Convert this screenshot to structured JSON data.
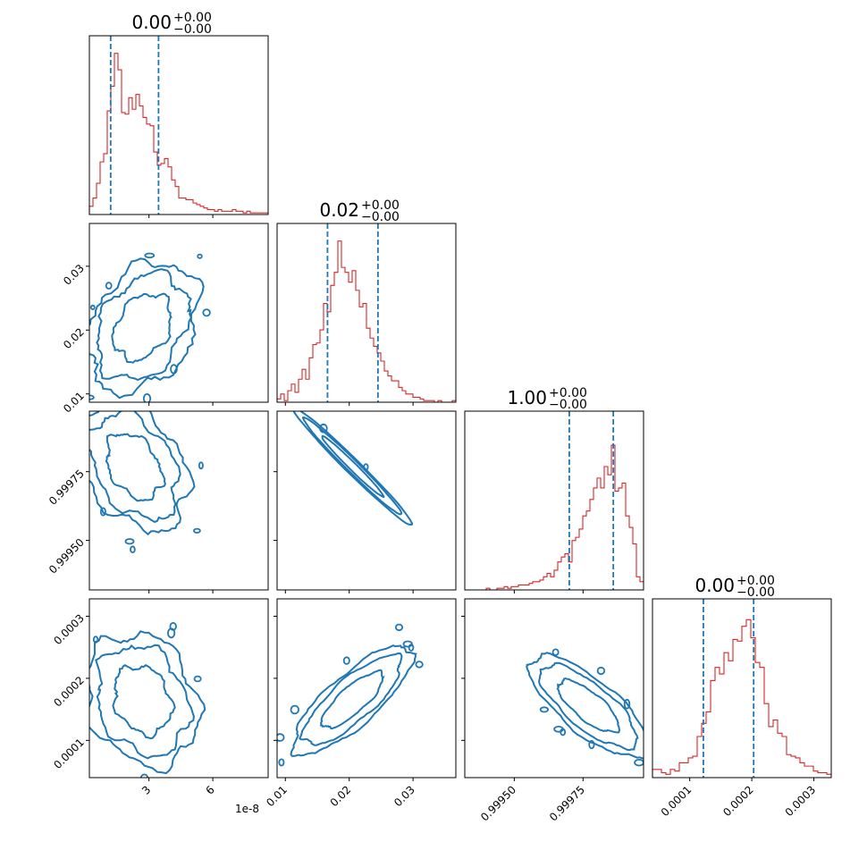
{
  "chart_data": {
    "type": "corner",
    "offset_labels": {
      "x0": "1e-8"
    },
    "colors": {
      "histogram": "#d62728",
      "contour": "#1f77b4",
      "quantile": "#1f77b4",
      "axes": "#000000"
    },
    "params": [
      {
        "title": {
          "main": "0.00",
          "sup": "+0.00",
          "sub": "−0.00"
        },
        "range": [
          0.2,
          8.6
        ],
        "quantiles": [
          1.2,
          3.45
        ],
        "ticks": [
          3,
          6
        ],
        "tick_labels": [
          "3",
          "6"
        ],
        "hist": [
          0.05,
          0.1,
          0.19,
          0.32,
          0.37,
          0.63,
          0.78,
          0.98,
          0.88,
          0.62,
          0.61,
          0.71,
          0.64,
          0.73,
          0.66,
          0.59,
          0.55,
          0.54,
          0.38,
          0.3,
          0.31,
          0.34,
          0.29,
          0.21,
          0.17,
          0.1,
          0.1,
          0.09,
          0.09,
          0.07,
          0.06,
          0.05,
          0.04,
          0.03,
          0.03,
          0.02,
          0.03,
          0.02,
          0.02,
          0.02,
          0.03,
          0.02,
          0.02,
          0.01,
          0.02,
          0.01,
          0.01,
          0.01,
          0.01,
          0.01
        ]
      },
      {
        "title": {
          "main": "0.02",
          "sup": "+0.00",
          "sub": "−0.00"
        },
        "range": [
          0.0087,
          0.0367
        ],
        "quantiles": [
          0.0166,
          0.0245
        ],
        "ticks": [
          0.01,
          0.02,
          0.03
        ],
        "tick_labels": [
          "0.01",
          "0.02",
          "0.03"
        ],
        "hist": [
          0.02,
          0.05,
          0.01,
          0.07,
          0.11,
          0.06,
          0.14,
          0.2,
          0.14,
          0.27,
          0.35,
          0.36,
          0.44,
          0.6,
          0.55,
          0.71,
          0.79,
          0.98,
          0.82,
          0.79,
          0.73,
          0.8,
          0.68,
          0.58,
          0.6,
          0.45,
          0.39,
          0.34,
          0.3,
          0.25,
          0.19,
          0.16,
          0.13,
          0.13,
          0.09,
          0.07,
          0.05,
          0.05,
          0.03,
          0.03,
          0.02,
          0.01,
          0.01,
          0.01,
          0.0,
          0.01,
          0.0,
          0.0,
          0.0,
          0.01
        ]
      },
      {
        "title": {
          "main": "1.00",
          "sup": "+0.00",
          "sub": "−0.00"
        },
        "range": [
          0.99932,
          0.99997
        ],
        "quantiles": [
          0.9997,
          0.99986
        ],
        "ticks": [
          0.9995,
          0.99975
        ],
        "tick_labels": [
          "0.99950",
          "0.99975"
        ],
        "hist": [
          0.0,
          0.0,
          0.0,
          0.0,
          0.0,
          0.0,
          0.01,
          0.0,
          0.0,
          0.01,
          0.01,
          0.02,
          0.01,
          0.02,
          0.02,
          0.03,
          0.03,
          0.03,
          0.04,
          0.05,
          0.05,
          0.06,
          0.08,
          0.1,
          0.08,
          0.12,
          0.17,
          0.2,
          0.22,
          0.17,
          0.3,
          0.32,
          0.37,
          0.45,
          0.48,
          0.55,
          0.62,
          0.68,
          0.62,
          0.75,
          0.7,
          0.88,
          0.6,
          0.62,
          0.65,
          0.45,
          0.38,
          0.28,
          0.08,
          0.05
        ]
      },
      {
        "title": {
          "main": "0.00",
          "sup": "+0.00",
          "sub": "−0.00"
        },
        "range": [
          4e-05,
          0.000328
        ],
        "quantiles": [
          0.000122,
          0.000203
        ],
        "ticks": [
          0.0001,
          0.0002,
          0.0003
        ],
        "tick_labels": [
          "0.0001",
          "0.0002",
          "0.0003"
        ],
        "hist": [
          0.05,
          0.05,
          0.03,
          0.02,
          0.05,
          0.04,
          0.09,
          0.09,
          0.12,
          0.13,
          0.25,
          0.33,
          0.4,
          0.59,
          0.67,
          0.63,
          0.76,
          0.71,
          0.84,
          0.83,
          0.92,
          0.96,
          0.85,
          0.7,
          0.67,
          0.45,
          0.31,
          0.35,
          0.27,
          0.25,
          0.14,
          0.13,
          0.12,
          0.09,
          0.07,
          0.07,
          0.04,
          0.03,
          0.03,
          0.02
        ]
      }
    ],
    "pairs": [
      {
        "row": 1,
        "col": 0,
        "x_center": 2.7,
        "y_center": 0.0205,
        "x_sd": 1.35,
        "y_sd": 0.0052,
        "rho": 0.3
      },
      {
        "row": 2,
        "col": 0,
        "x_center": 2.3,
        "y_center": 0.99977,
        "x_sd": 1.3,
        "y_sd": 0.00012,
        "rho": -0.35
      },
      {
        "row": 2,
        "col": 1,
        "x_center": 0.0205,
        "y_center": 0.99977,
        "x_sd": 0.0048,
        "y_sd": 0.00011,
        "rho": -0.985
      },
      {
        "row": 3,
        "col": 0,
        "x_center": 2.7,
        "y_center": 0.000165,
        "x_sd": 1.35,
        "y_sd": 5.5e-05,
        "rho": -0.2
      },
      {
        "row": 3,
        "col": 1,
        "x_center": 0.0205,
        "y_center": 0.000165,
        "x_sd": 0.0048,
        "y_sd": 4.5e-05,
        "rho": 0.8
      },
      {
        "row": 3,
        "col": 2,
        "x_center": 0.99977,
        "y_center": 0.000155,
        "x_sd": 0.00011,
        "y_sd": 4.2e-05,
        "rho": -0.75
      }
    ],
    "contour_levels": [
      1.0,
      1.6,
      1.95
    ]
  }
}
